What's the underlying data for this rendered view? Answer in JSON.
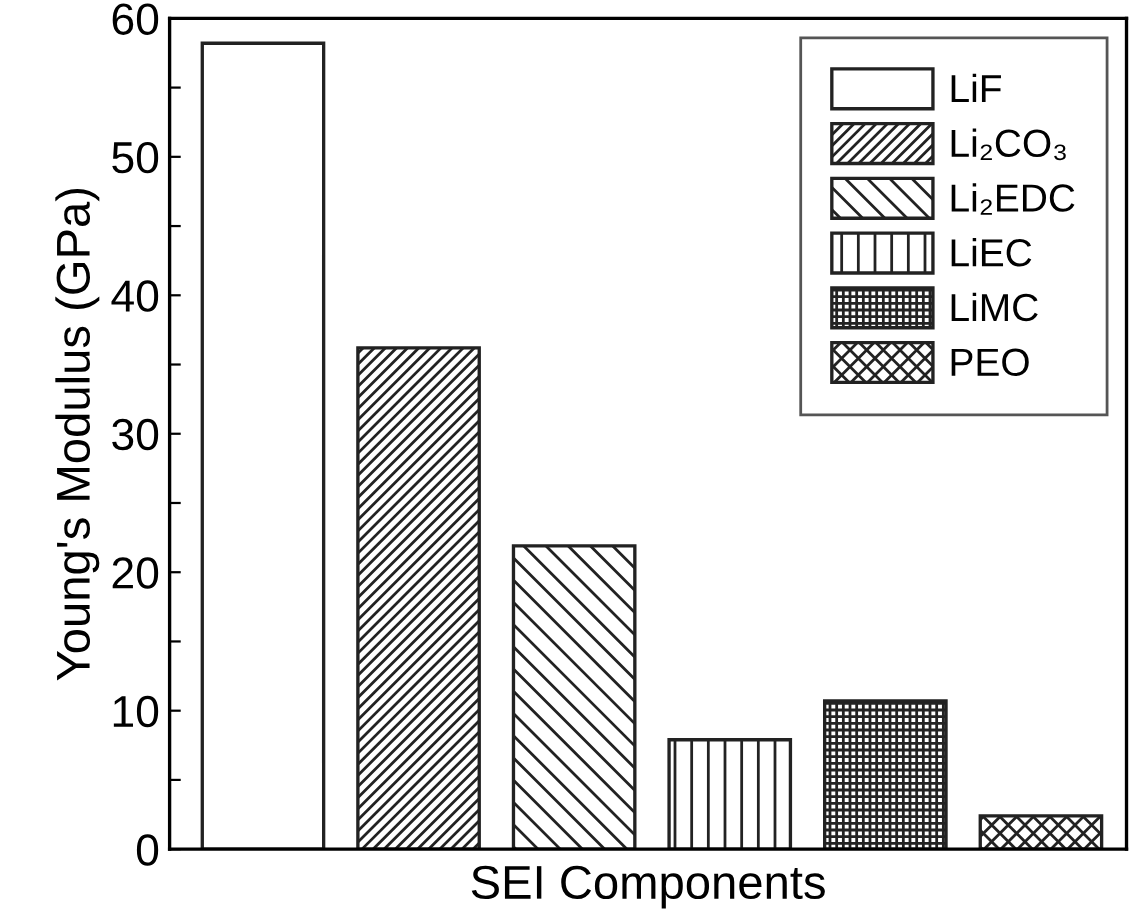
{
  "chart_data": {
    "type": "bar",
    "xlabel": "SEI Components",
    "ylabel": "Young's Modulus (GPa)",
    "categories": [
      null,
      null,
      null,
      null,
      null,
      null
    ],
    "series": [
      {
        "name": "LiF",
        "color": "#ffffff",
        "values": [
          58.2,
          null,
          null,
          null,
          null,
          null
        ]
      },
      {
        "name": "Li₂CO₃",
        "color": "#222222",
        "values": [
          null,
          36.2,
          null,
          null,
          null,
          null
        ]
      },
      {
        "name": "Li₂EDC",
        "color": "#222222",
        "values": [
          null,
          null,
          21.9,
          null,
          null,
          null
        ]
      },
      {
        "name": "LiEC",
        "color": "#222222",
        "values": [
          null,
          null,
          null,
          7.9,
          null,
          null
        ]
      },
      {
        "name": "LiMC",
        "color": "#222222",
        "values": [
          null,
          null,
          null,
          null,
          10.7,
          null
        ]
      },
      {
        "name": "PEO",
        "color": "#222222",
        "values": [
          null,
          null,
          null,
          null,
          null,
          2.4
        ]
      }
    ],
    "ylim": [
      0,
      60
    ],
    "yticks": [
      0,
      {
        "value": 5,
        "label": null
      },
      10,
      {
        "value": 15,
        "label": null
      },
      20,
      {
        "value": 25,
        "label": null
      },
      30,
      {
        "value": 35,
        "label": null
      },
      40,
      {
        "value": 45,
        "label": null
      },
      50,
      {
        "value": 55,
        "label": null
      },
      60
    ],
    "legend": "top right",
    "grid": false
  }
}
